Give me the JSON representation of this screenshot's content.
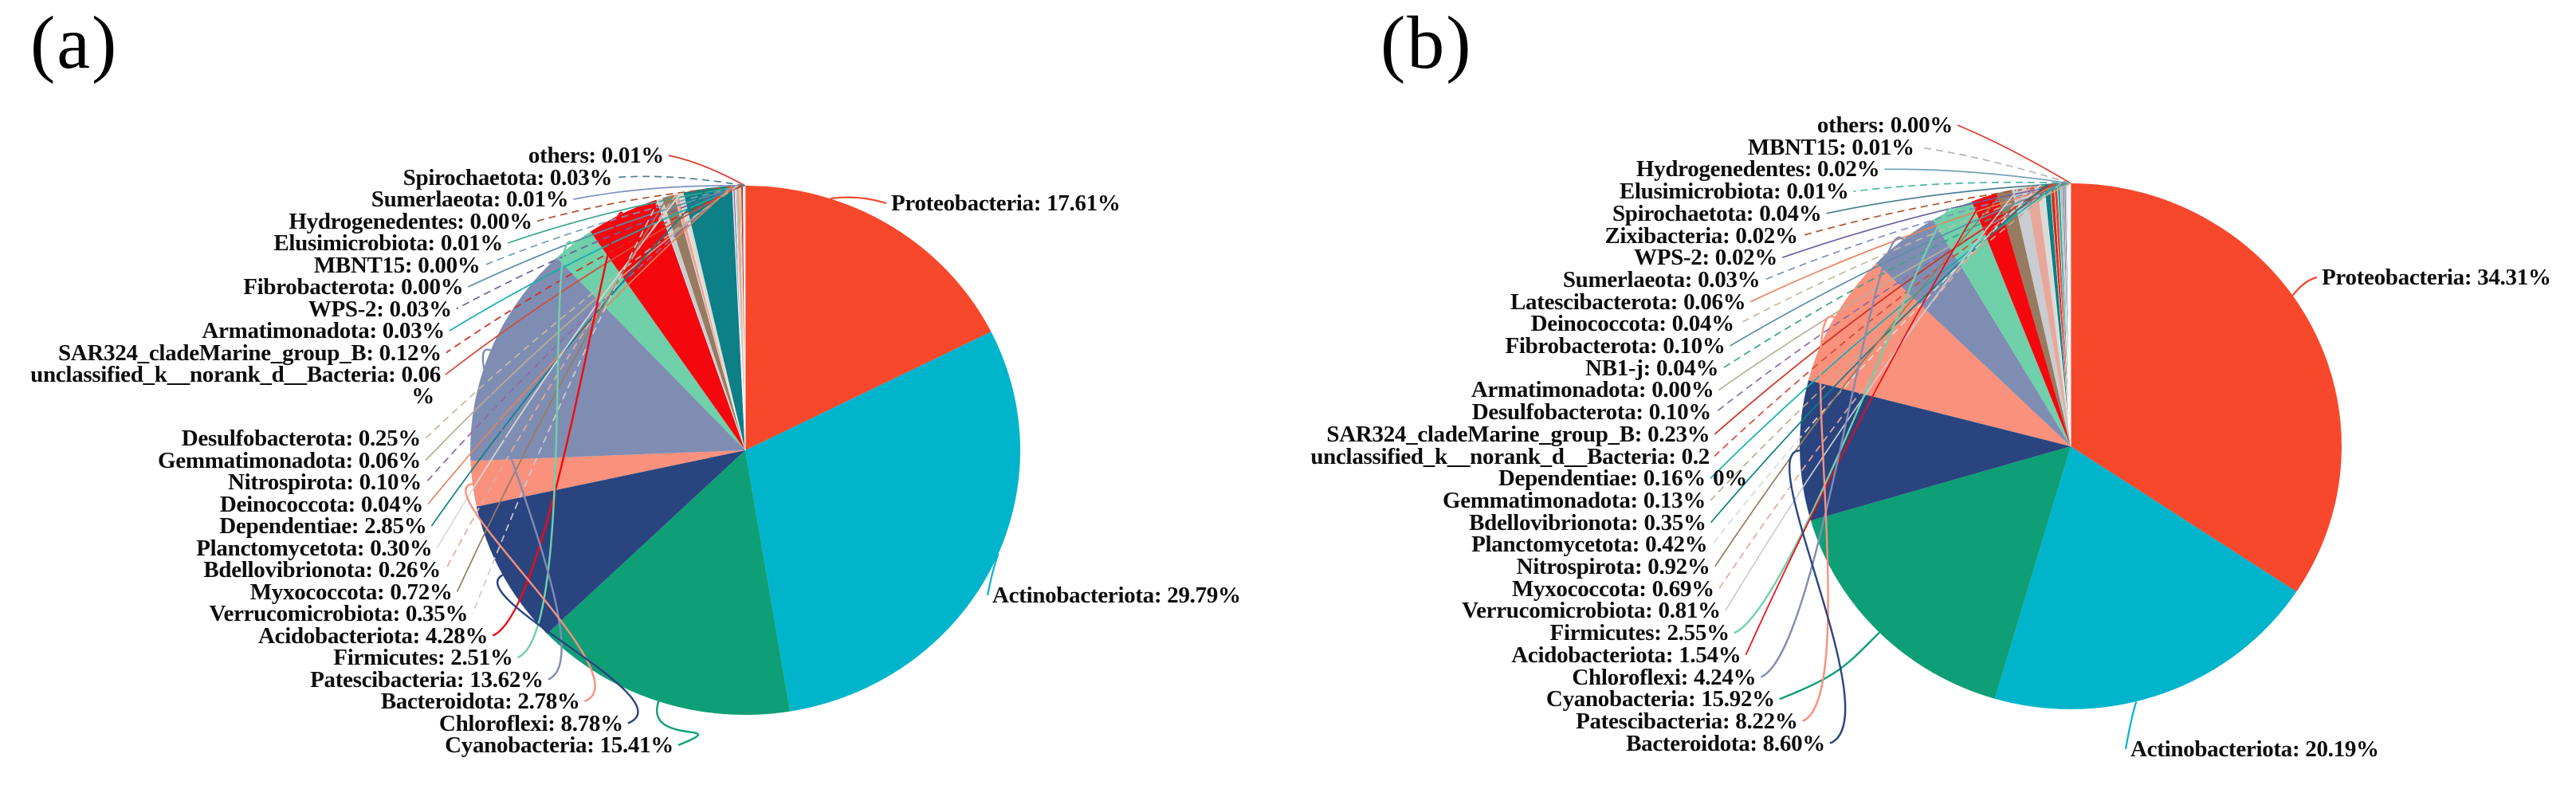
{
  "figure_type": "two-panel taxonomic composition pie chart figure",
  "background": "#ffffff",
  "text_color": "#0d0d0d",
  "chart_data": [
    {
      "type": "pie",
      "title": "(a)",
      "legend_position": "callout labels around pie",
      "slices": [
        {
          "name": "Proteobacteria",
          "value": 17.61,
          "pct": "17.61%",
          "color": "#f8482c"
        },
        {
          "name": "Actinobacteriota",
          "value": 29.79,
          "pct": "29.79%",
          "color": "#00b5cb"
        },
        {
          "name": "Cyanobacteria",
          "value": 15.41,
          "pct": "15.41%",
          "color": "#0f9f77"
        },
        {
          "name": "Chloroflexi",
          "value": 8.78,
          "pct": "8.78%",
          "color": "#2a4480"
        },
        {
          "name": "Bacteroidota",
          "value": 2.78,
          "pct": "2.78%",
          "color": "#f9917c"
        },
        {
          "name": "Patescibacteria",
          "value": 13.62,
          "pct": "13.62%",
          "color": "#7f8db2"
        },
        {
          "name": "Firmicutes",
          "value": 2.51,
          "pct": "2.51%",
          "color": "#6fd0aa"
        },
        {
          "name": "Acidobacteriota",
          "value": 4.28,
          "pct": "4.28%",
          "color": "#f5070e"
        },
        {
          "name": "Verrucomicrobiota",
          "value": 0.35,
          "pct": "0.35%",
          "color": "#c9cdd1"
        },
        {
          "name": "Myxococcota",
          "value": 0.72,
          "pct": "0.72%",
          "color": "#977b60"
        },
        {
          "name": "Bdellovibrionota",
          "value": 0.26,
          "pct": "0.26%",
          "color": "#e8a79b"
        },
        {
          "name": "Planctomycetota",
          "value": 0.3,
          "pct": "0.30%",
          "color": "#d9dbd6"
        },
        {
          "name": "Dependentiae",
          "value": 2.85,
          "pct": "2.85%",
          "color": "#0d7f86"
        },
        {
          "name": "Deinococcota",
          "value": 0.04,
          "pct": "0.04%",
          "color": "#e5835c"
        },
        {
          "name": "Nitrospirota",
          "value": 0.1,
          "pct": "0.10%",
          "color": "#8b6aa8"
        },
        {
          "name": "Gemmatimonadota",
          "value": 0.06,
          "pct": "0.06%",
          "color": "#b8ad95"
        },
        {
          "name": "Desulfobacterota",
          "value": 0.25,
          "pct": "0.25%",
          "color": "#c5b9a4"
        },
        {
          "name": "unclassified_k__norank_d__Bacteria",
          "value": 0.06,
          "pct": "0.06%",
          "color": "#d44a3a"
        },
        {
          "name": "SAR324_cladeMarine_group_B",
          "value": 0.12,
          "pct": "0.12%",
          "color": "#cc2f1e"
        },
        {
          "name": "Armatimonadota",
          "value": 0.03,
          "pct": "0.03%",
          "color": "#15b0ae"
        },
        {
          "name": "WPS-2",
          "value": 0.03,
          "pct": "0.03%",
          "color": "#6f5f9c"
        },
        {
          "name": "Fibrobacterota",
          "value": 0.0,
          "pct": "0.00%",
          "color": "#5b8fa8"
        },
        {
          "name": "MBNT15",
          "value": 0.0,
          "pct": "0.00%",
          "color": "#74a0b5"
        },
        {
          "name": "Elusimicrobiota",
          "value": 0.01,
          "pct": "0.01%",
          "color": "#3aa58c"
        },
        {
          "name": "Hydrogenedentes",
          "value": 0.0,
          "pct": "0.00%",
          "color": "#a8552f"
        },
        {
          "name": "Sumerlaeota",
          "value": 0.01,
          "pct": "0.01%",
          "color": "#8091c0"
        },
        {
          "name": "Spirochaetota",
          "value": 0.03,
          "pct": "0.03%",
          "color": "#4d7f91"
        },
        {
          "name": "others",
          "value": 0.01,
          "pct": "0.01%",
          "color": "#e0392b"
        }
      ],
      "left_label_order": [
        "others",
        "Spirochaetota",
        "Sumerlaeota",
        "Hydrogenedentes",
        "Elusimicrobiota",
        "MBNT15",
        "Fibrobacterota",
        "WPS-2",
        "Armatimonadota",
        "SAR324_cladeMarine_group_B",
        "unclassified_k__norank_d__Bacteria",
        "Desulfobacterota",
        "Gemmatimonadota",
        "Nitrospirota",
        "Deinococcota",
        "Dependentiae",
        "Planctomycetota",
        "Bdellovibrionota",
        "Myxococcota",
        "Verrucomicrobiota",
        "Acidobacteriota",
        "Firmicutes",
        "Patescibacteria",
        "Bacteroidota",
        "Chloroflexi",
        "Cyanobacteria"
      ],
      "right_label_order": [
        "Proteobacteria",
        "Actinobacteriota"
      ],
      "wrapped_label": "unclassified_k__norank_d__Bacteria"
    },
    {
      "type": "pie",
      "title": "(b)",
      "legend_position": "callout labels around pie",
      "slices": [
        {
          "name": "Proteobacteria",
          "value": 34.31,
          "pct": "34.31%",
          "color": "#f8482c"
        },
        {
          "name": "Actinobacteriota",
          "value": 20.19,
          "pct": "20.19%",
          "color": "#00b5cb"
        },
        {
          "name": "Cyanobacteria",
          "value": 15.92,
          "pct": "15.92%",
          "color": "#0f9f77"
        },
        {
          "name": "Bacteroidota",
          "value": 8.6,
          "pct": "8.60%",
          "color": "#2a4480"
        },
        {
          "name": "Patescibacteria",
          "value": 8.22,
          "pct": "8.22%",
          "color": "#f9917c"
        },
        {
          "name": "Chloroflexi",
          "value": 4.24,
          "pct": "4.24%",
          "color": "#7f8db2"
        },
        {
          "name": "Firmicutes",
          "value": 2.55,
          "pct": "2.55%",
          "color": "#6fd0aa"
        },
        {
          "name": "Acidobacteriota",
          "value": 1.54,
          "pct": "1.54%",
          "color": "#f5070e"
        },
        {
          "name": "Nitrospirota",
          "value": 0.92,
          "pct": "0.92%",
          "color": "#977b60"
        },
        {
          "name": "Verrucomicrobiota",
          "value": 0.81,
          "pct": "0.81%",
          "color": "#c9cdd1"
        },
        {
          "name": "Myxococcota",
          "value": 0.69,
          "pct": "0.69%",
          "color": "#e8a79b"
        },
        {
          "name": "Planctomycetota",
          "value": 0.42,
          "pct": "0.42%",
          "color": "#d9dbd6"
        },
        {
          "name": "Bdellovibrionota",
          "value": 0.35,
          "pct": "0.35%",
          "color": "#0d7f86"
        },
        {
          "name": "SAR324_cladeMarine_group_B",
          "value": 0.23,
          "pct": "0.23%",
          "color": "#cc2f1e"
        },
        {
          "name": "unclassified_k__norank_d__Bacteria",
          "value": 0.2,
          "pct": "0.20%",
          "color": "#d44a3a"
        },
        {
          "name": "Dependentiae",
          "value": 0.16,
          "pct": "0.16%",
          "color": "#15b0ae"
        },
        {
          "name": "Gemmatimonadota",
          "value": 0.13,
          "pct": "0.13%",
          "color": "#b8ad95"
        },
        {
          "name": "Desulfobacterota",
          "value": 0.1,
          "pct": "0.10%",
          "color": "#8b6aa8"
        },
        {
          "name": "Fibrobacterota",
          "value": 0.1,
          "pct": "0.10%",
          "color": "#5b8fa8"
        },
        {
          "name": "Latescibacterota",
          "value": 0.06,
          "pct": "0.06%",
          "color": "#e5835c"
        },
        {
          "name": "NB1-j",
          "value": 0.04,
          "pct": "0.04%",
          "color": "#3aa58c"
        },
        {
          "name": "Deinococcota",
          "value": 0.04,
          "pct": "0.04%",
          "color": "#c5b9a4"
        },
        {
          "name": "Spirochaetota",
          "value": 0.04,
          "pct": "0.04%",
          "color": "#4d7f91"
        },
        {
          "name": "Sumerlaeota",
          "value": 0.03,
          "pct": "0.03%",
          "color": "#8091c0"
        },
        {
          "name": "Zixibacteria",
          "value": 0.02,
          "pct": "0.02%",
          "color": "#a8552f"
        },
        {
          "name": "WPS-2",
          "value": 0.02,
          "pct": "0.02%",
          "color": "#6f5f9c"
        },
        {
          "name": "Hydrogenedentes",
          "value": 0.02,
          "pct": "0.02%",
          "color": "#74a0b5"
        },
        {
          "name": "MBNT15",
          "value": 0.01,
          "pct": "0.01%",
          "color": "#b0b6bd"
        },
        {
          "name": "Elusimicrobiota",
          "value": 0.01,
          "pct": "0.01%",
          "color": "#49b7a0"
        },
        {
          "name": "Armatimonadota",
          "value": 0.0,
          "pct": "0.00%",
          "color": "#b8b09b"
        },
        {
          "name": "others",
          "value": 0.0,
          "pct": "0.00%",
          "color": "#e0392b"
        }
      ],
      "left_label_order": [
        "others",
        "MBNT15",
        "Hydrogenedentes",
        "Elusimicrobiota",
        "Spirochaetota",
        "Zixibacteria",
        "WPS-2",
        "Sumerlaeota",
        "Latescibacterota",
        "Deinococcota",
        "Fibrobacterota",
        "NB1-j",
        "Armatimonadota",
        "Desulfobacterota",
        "SAR324_cladeMarine_group_B",
        "unclassified_k__norank_d__Bacteria",
        "Dependentiae",
        "Gemmatimonadota",
        "Bdellovibrionota",
        "Planctomycetota",
        "Nitrospirota",
        "Myxococcota",
        "Verrucomicrobiota",
        "Firmicutes",
        "Acidobacteriota",
        "Chloroflexi",
        "Cyanobacteria",
        "Patescibacteria",
        "Bacteroidota"
      ],
      "right_label_order": [
        "Proteobacteria",
        "Actinobacteriota"
      ],
      "wrapped_label": "unclassified_k__norank_d__Bacteria"
    }
  ]
}
